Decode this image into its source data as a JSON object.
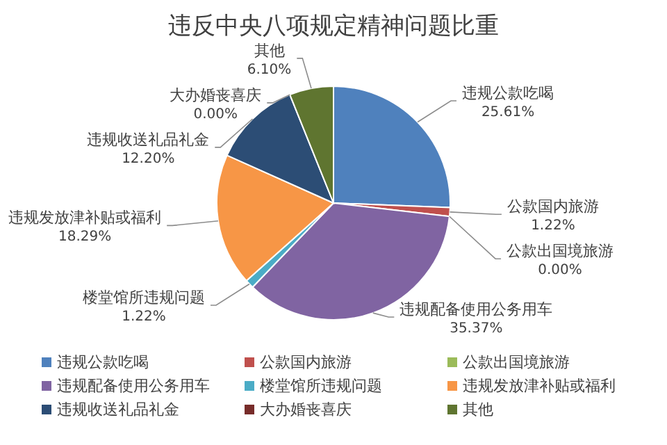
{
  "chart_data": {
    "type": "pie",
    "title": "违反中央八项规定精神问题比重",
    "categories": [
      "违规公款吃喝",
      "公款国内旅游",
      "公款出国境旅游",
      "违规配备使用公务用车",
      "楼堂馆所违规问题",
      "违规发放津补贴或福利",
      "违规收送礼品礼金",
      "大办婚丧喜庆",
      "其他"
    ],
    "values": [
      25.61,
      1.22,
      0.0,
      35.37,
      1.22,
      18.29,
      12.2,
      0.0,
      6.1
    ],
    "value_labels": [
      "25.61%",
      "1.22%",
      "0.00%",
      "35.37%",
      "1.22%",
      "18.29%",
      "12.20%",
      "0.00%",
      "6.10%"
    ],
    "colors": [
      "#4f81bd",
      "#c0504d",
      "#9bbb59",
      "#8064a2",
      "#4bacc6",
      "#f79646",
      "#2c4d75",
      "#772c2a",
      "#5f7530"
    ],
    "legend": "bottom"
  }
}
